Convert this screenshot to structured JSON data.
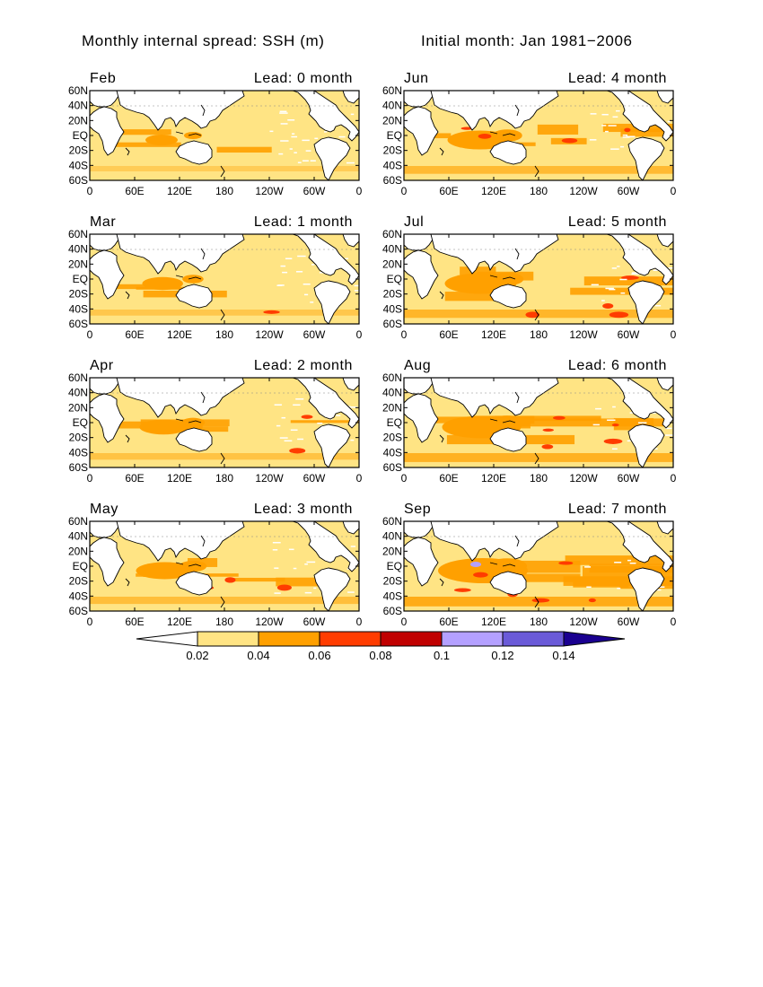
{
  "header": {
    "title": "Monthly internal spread: SSH (m)",
    "subtitle": "Initial month: Jan 1981−2006"
  },
  "axes": {
    "lat_labels": [
      "60N",
      "40N",
      "20N",
      "EQ",
      "20S",
      "40S",
      "60S"
    ],
    "lon_labels": [
      "0",
      "60E",
      "120E",
      "180",
      "120W",
      "60W",
      "0"
    ]
  },
  "panels": [
    {
      "month": "Feb",
      "lead": "Lead: 0 month",
      "intensity": 0.0
    },
    {
      "month": "Jun",
      "lead": "Lead: 4 month",
      "intensity": 0.45
    },
    {
      "month": "Mar",
      "lead": "Lead: 1 month",
      "intensity": 0.12
    },
    {
      "month": "Jul",
      "lead": "Lead: 5 month",
      "intensity": 0.55
    },
    {
      "month": "Apr",
      "lead": "Lead: 2 month",
      "intensity": 0.22
    },
    {
      "month": "Aug",
      "lead": "Lead: 6 month",
      "intensity": 0.65
    },
    {
      "month": "May",
      "lead": "Lead: 3 month",
      "intensity": 0.35
    },
    {
      "month": "Sep",
      "lead": "Lead: 7 month",
      "intensity": 0.8
    }
  ],
  "colorbar": {
    "labels": [
      "0.02",
      "0.04",
      "0.06",
      "0.08",
      "0.1",
      "0.12",
      "0.14"
    ],
    "colors": [
      "#ffffff",
      "#ffe484",
      "#ffa000",
      "#ff3c00",
      "#c00000",
      "#b4a0ff",
      "#6a5ad8",
      "#1a0090"
    ]
  },
  "colors": {
    "land": "#ffffff",
    "ocean_base": "#ffe484"
  }
}
